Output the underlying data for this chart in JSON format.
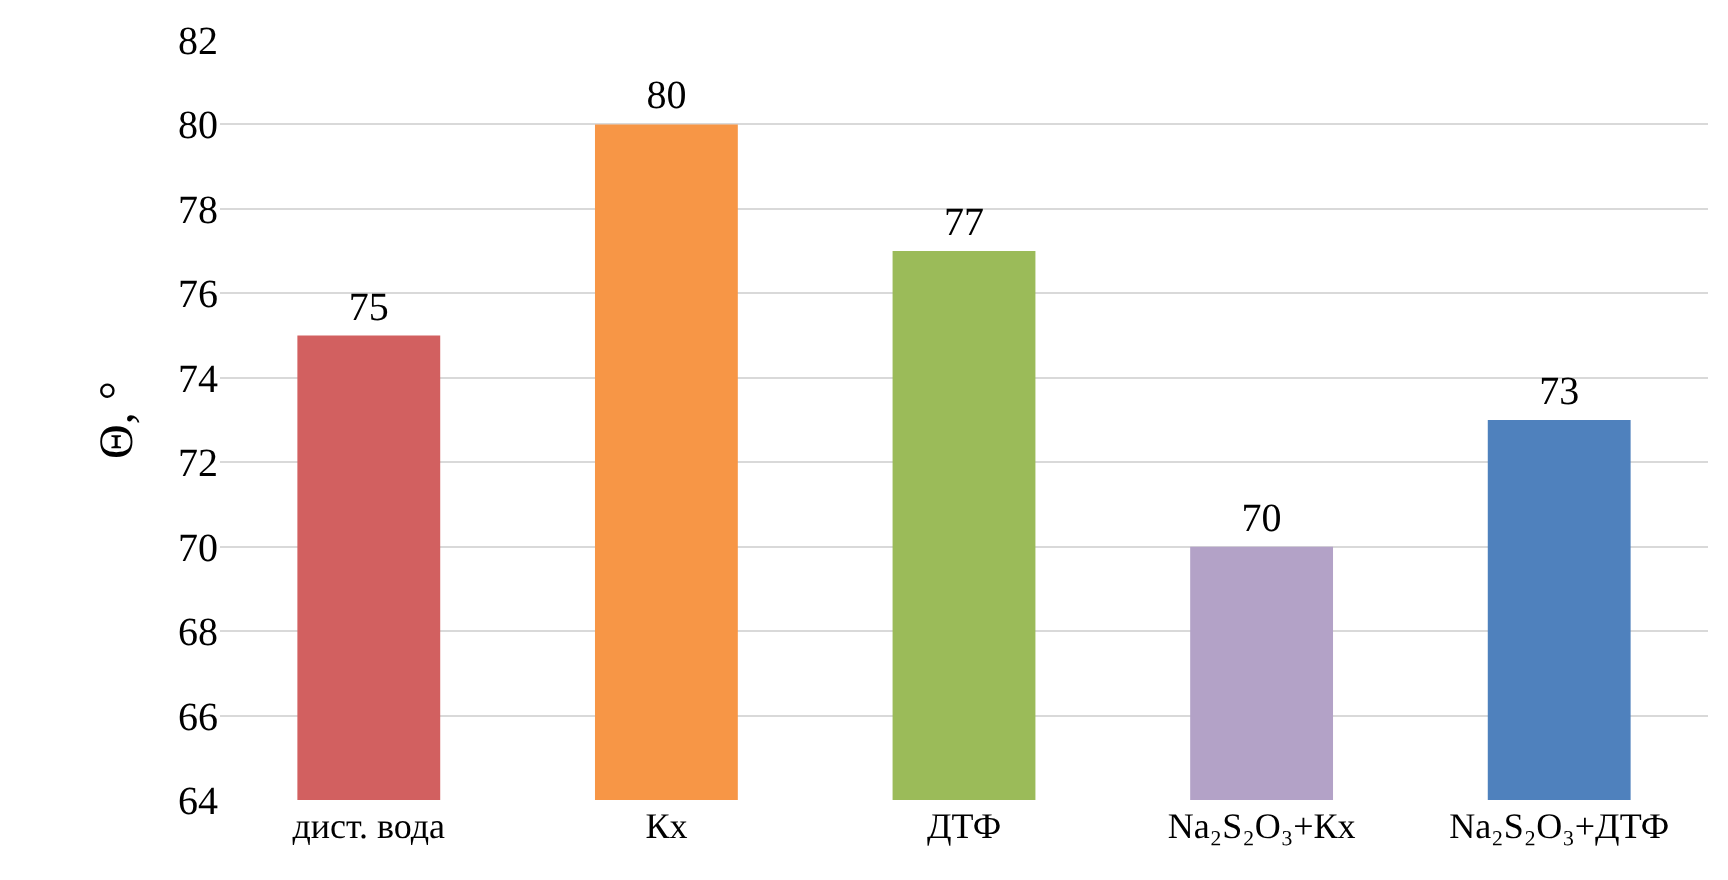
{
  "chart_data": {
    "type": "bar",
    "ylabel": "Θ, °",
    "categories": [
      "дист. вода",
      "Кх",
      "ДТФ",
      "Na₂S₂O₃+Кх",
      "Na₂S₂O₃+ДТФ"
    ],
    "values": [
      75,
      80,
      77,
      70,
      73
    ],
    "colors": [
      "#d26060",
      "#f79646",
      "#9bbb59",
      "#b3a2c7",
      "#4f81bd"
    ],
    "ylim": [
      64,
      82
    ],
    "yticks": [
      64,
      66,
      68,
      70,
      72,
      74,
      76,
      78,
      80,
      82
    ],
    "grid": "y",
    "data_labels": true
  }
}
